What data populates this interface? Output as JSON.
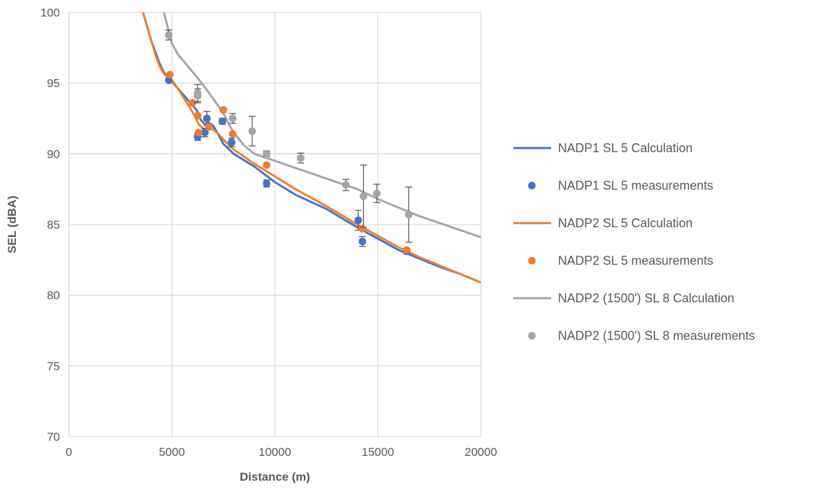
{
  "chart_data": {
    "type": "line",
    "xlabel": "Distance (m)",
    "ylabel": "SEL (dBA)",
    "xlim": [
      0,
      20000
    ],
    "ylim": [
      70,
      100
    ],
    "xticks": [
      "0",
      "5000",
      "10000",
      "15000",
      "20000"
    ],
    "yticks": [
      "70",
      "75",
      "80",
      "85",
      "90",
      "95",
      "100"
    ],
    "grid": true,
    "legend_position": "right",
    "colors": {
      "NADP1": "#4472C4",
      "NADP2": "#ED7D31",
      "NADP2_1500": "#A5A5A5",
      "grid": "#D9D9D9",
      "errorbar": "#595959"
    },
    "series": [
      {
        "name": "NADP1 SL 5 Calculation",
        "kind": "line",
        "color": "#4472C4",
        "x": [
          3600,
          3800,
          4000,
          4200,
          4400,
          4600,
          4800,
          5000,
          5300,
          5600,
          5900,
          6200,
          6400,
          6600,
          6800,
          7000,
          7200,
          7500,
          8000,
          9000,
          10000,
          11000,
          12500,
          14000,
          15000,
          16000,
          17000,
          18000,
          19000,
          20000
        ],
        "y": [
          100,
          99.0,
          98.0,
          97.2,
          96.4,
          95.8,
          95.4,
          95.1,
          94.6,
          94.1,
          93.6,
          93.1,
          92.4,
          92.1,
          92.2,
          92.0,
          91.5,
          90.7,
          90.0,
          89.1,
          88.0,
          87.1,
          86.1,
          84.8,
          84.0,
          83.2,
          82.6,
          82.0,
          81.5,
          80.9
        ]
      },
      {
        "name": "NADP1 SL 5 measurements",
        "kind": "scatter",
        "color": "#4472C4",
        "x": [
          4850,
          6250,
          6700,
          6600,
          7450,
          7900,
          9600,
          14050,
          14250,
          16400
        ],
        "y": [
          95.2,
          91.2,
          92.5,
          91.5,
          92.3,
          90.8,
          87.9,
          85.3,
          83.8,
          83.1
        ],
        "err": [
          0,
          0.25,
          0.5,
          0.3,
          0.2,
          0.3,
          0.25,
          0.7,
          0.35,
          0.2
        ]
      },
      {
        "name": "NADP2 SL 5 Calculation",
        "kind": "line",
        "color": "#ED7D31",
        "x": [
          3600,
          3800,
          4000,
          4200,
          4400,
          4600,
          4800,
          5000,
          5300,
          5600,
          5900,
          6100,
          6300,
          6500,
          6700,
          6900,
          7200,
          7500,
          8000,
          9000,
          10000,
          11000,
          12500,
          14000,
          15000,
          16000,
          17000,
          18000,
          19000,
          20000
        ],
        "y": [
          100,
          99.0,
          98.0,
          97.0,
          96.2,
          95.7,
          95.4,
          95.2,
          94.6,
          93.9,
          93.2,
          92.7,
          92.1,
          91.8,
          91.7,
          91.8,
          91.5,
          91.0,
          90.3,
          89.3,
          88.4,
          87.5,
          86.3,
          85.0,
          84.2,
          83.4,
          82.7,
          82.1,
          81.5,
          80.9
        ]
      },
      {
        "name": "NADP2 SL 5 measurements",
        "kind": "scatter",
        "color": "#ED7D31",
        "x": [
          4900,
          6000,
          6250,
          6300,
          6800,
          7500,
          7950,
          9600,
          14250,
          16400
        ],
        "y": [
          95.6,
          93.6,
          92.7,
          91.5,
          91.9,
          93.1,
          91.4,
          89.2,
          84.7,
          83.2
        ],
        "err": [
          0,
          0,
          0,
          0,
          0,
          0,
          0,
          0,
          0,
          0
        ]
      },
      {
        "name": "NADP2 (1500') SL 8 Calculation",
        "kind": "line",
        "color": "#A5A5A5",
        "x": [
          3500,
          4000,
          4400,
          4700,
          5000,
          5300,
          5600,
          6000,
          6500,
          7000,
          7300,
          7600,
          7800,
          8000,
          8500,
          9000,
          10000,
          11000,
          12000,
          13000,
          14000,
          15000,
          16000,
          17000,
          18000,
          19000,
          20000
        ],
        "y": [
          104,
          102.5,
          101.2,
          99.5,
          97.8,
          97.0,
          96.5,
          95.8,
          94.9,
          93.9,
          93.3,
          92.6,
          92.0,
          91.5,
          90.6,
          90.0,
          89.5,
          89.0,
          88.5,
          88.0,
          87.5,
          86.8,
          86.2,
          85.6,
          85.1,
          84.6,
          84.1
        ]
      },
      {
        "name": "NADP2 (1500') SL 8 measurements",
        "kind": "scatter",
        "color": "#A5A5A5",
        "x": [
          4850,
          6250,
          6250,
          7950,
          8900,
          9600,
          11250,
          13450,
          14300,
          14950,
          16500
        ],
        "y": [
          98.4,
          94.3,
          94.1,
          92.5,
          91.6,
          90.0,
          89.7,
          87.8,
          87.0,
          87.2,
          85.7
        ],
        "err": [
          0.35,
          0.6,
          0.5,
          0.35,
          1.05,
          0.2,
          0.35,
          0.4,
          2.2,
          0.65,
          1.95
        ]
      }
    ]
  }
}
